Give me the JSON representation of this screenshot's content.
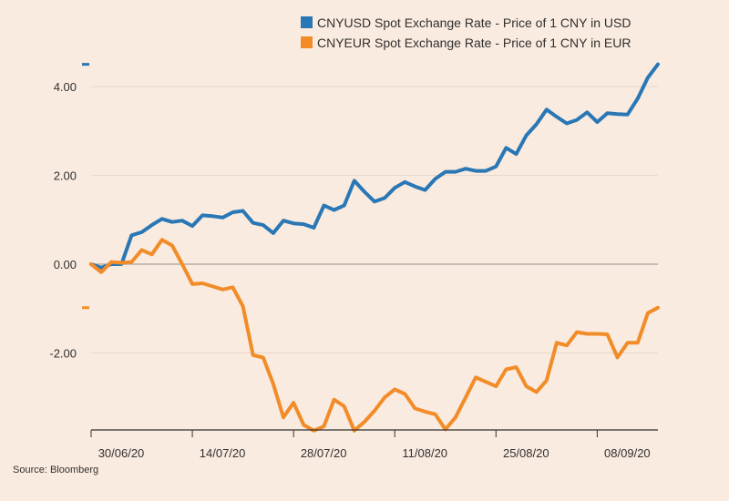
{
  "chart_data": {
    "type": "line",
    "title": "",
    "xlabel": "",
    "ylabel": "",
    "ylim": [
      -3.7,
      4.5
    ],
    "y_ticks": [
      "4.00",
      "2.00",
      "0.00",
      "-2.00"
    ],
    "x_tick_labels": [
      "30/06/20",
      "14/07/20",
      "28/07/20",
      "11/08/20",
      "25/08/20",
      "08/09/20"
    ],
    "legend_position": "top-right",
    "grid": "horizontal",
    "series": [
      {
        "name": "CNYUSD Spot Exchange Rate - Price of 1 CNY in USD",
        "color": "#2a77b5",
        "values": [
          0.0,
          -0.08,
          0.0,
          0.0,
          0.65,
          0.72,
          0.88,
          1.02,
          0.95,
          0.98,
          0.86,
          1.1,
          1.08,
          1.05,
          1.17,
          1.2,
          0.93,
          0.88,
          0.7,
          0.98,
          0.92,
          0.9,
          0.82,
          1.32,
          1.22,
          1.32,
          1.88,
          1.63,
          1.41,
          1.49,
          1.72,
          1.85,
          1.75,
          1.67,
          1.92,
          2.08,
          2.08,
          2.15,
          2.1,
          2.1,
          2.2,
          2.62,
          2.48,
          2.9,
          3.15,
          3.48,
          3.32,
          3.17,
          3.25,
          3.42,
          3.2,
          3.4,
          3.38,
          3.37,
          3.73,
          4.2,
          4.5
        ]
      },
      {
        "name": "CNYEUR Spot Exchange Rate - Price of 1 CNY in EUR",
        "color": "#f28c28",
        "values": [
          0.0,
          -0.18,
          0.05,
          0.03,
          0.05,
          0.32,
          0.22,
          0.55,
          0.42,
          0.0,
          -0.45,
          -0.43,
          -0.5,
          -0.57,
          -0.52,
          -0.95,
          -2.05,
          -2.1,
          -2.7,
          -3.45,
          -3.12,
          -3.62,
          -3.75,
          -3.65,
          -3.05,
          -3.2,
          -3.75,
          -3.55,
          -3.3,
          -3.0,
          -2.82,
          -2.92,
          -3.25,
          -3.32,
          -3.38,
          -3.72,
          -3.45,
          -3.0,
          -2.55,
          -2.65,
          -2.75,
          -2.37,
          -2.32,
          -2.75,
          -2.88,
          -2.62,
          -1.77,
          -1.83,
          -1.53,
          -1.57,
          -1.57,
          -1.58,
          -2.1,
          -1.77,
          -1.77,
          -1.1,
          -0.98
        ]
      }
    ]
  },
  "source_text": "Source: Bloomberg"
}
